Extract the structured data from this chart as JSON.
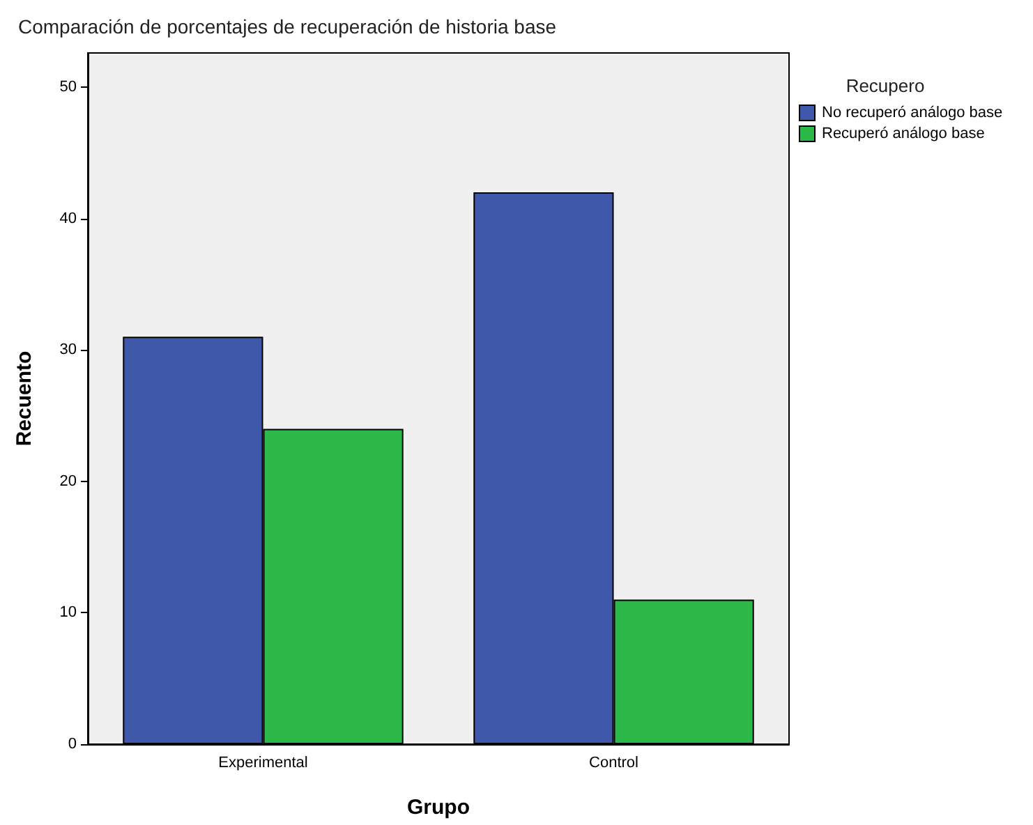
{
  "chart_data": {
    "type": "bar",
    "title": "Comparación de porcentajes de recuperación de historia base",
    "xlabel": "Grupo",
    "ylabel": "Recuento",
    "legend_title": "Recupero",
    "categories": [
      "Experimental",
      "Control"
    ],
    "series": [
      {
        "name": "No recuperó análogo base",
        "color": "#3f58aa",
        "values": [
          31,
          42
        ]
      },
      {
        "name": "Recuperó análogo base",
        "color": "#2db84a",
        "values": [
          24,
          11
        ]
      }
    ],
    "ylim": [
      0,
      52.6
    ],
    "yticks": [
      0,
      10,
      20,
      30,
      40,
      50
    ],
    "grid": false,
    "legend": "top right"
  }
}
